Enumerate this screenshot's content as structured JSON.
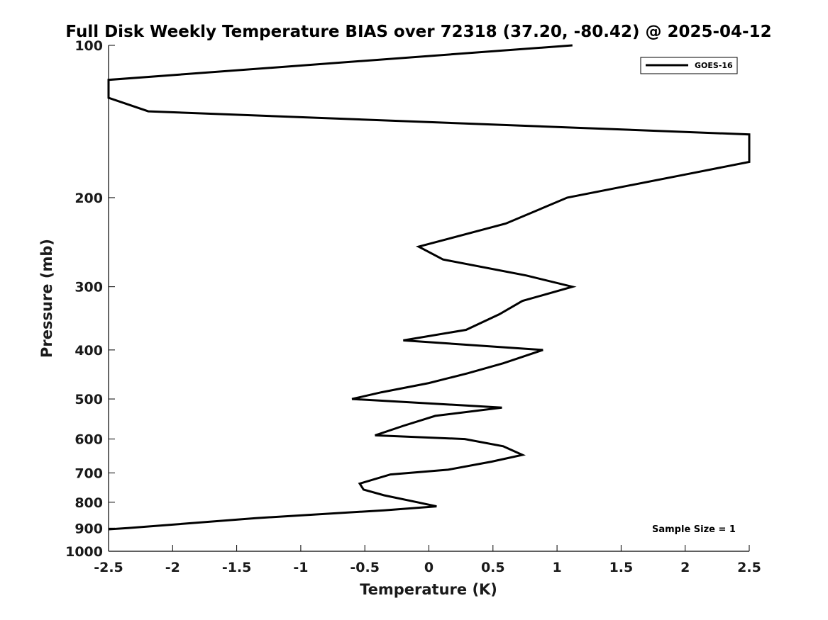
{
  "chart_data": {
    "type": "line",
    "title": "Full Disk Weekly Temperature BIAS over 72318 (37.20, -80.42) @ 2025-04-12",
    "xlabel": "Temperature (K)",
    "ylabel": "Pressure (mb)",
    "xlim": [
      -2.5,
      2.5
    ],
    "ylim": [
      1000,
      100
    ],
    "y_scale": "log",
    "x_ticks": [
      -2.5,
      -2,
      -1.5,
      -1,
      -0.5,
      0,
      0.5,
      1,
      1.5,
      2,
      2.5
    ],
    "x_tick_labels": [
      "-2.5",
      "-2",
      "-1.5",
      "-1",
      "-0.5",
      "0",
      "0.5",
      "1",
      "1.5",
      "2",
      "2.5"
    ],
    "y_ticks": [
      100,
      200,
      300,
      400,
      500,
      600,
      700,
      800,
      900,
      1000
    ],
    "y_tick_labels": [
      "100",
      "200",
      "300",
      "400",
      "500",
      "600",
      "700",
      "800",
      "900",
      "1000"
    ],
    "grid": false,
    "legend_position": "top-right",
    "annotation": "Sample Size = 1",
    "series": [
      {
        "name": "GOES-16",
        "color": "#000000",
        "points": [
          [
            1.12,
            100
          ],
          [
            -2.5,
            117
          ],
          [
            -2.5,
            127
          ],
          [
            -2.19,
            135
          ],
          [
            2.5,
            150
          ],
          [
            2.5,
            170
          ],
          [
            2.0,
            180
          ],
          [
            1.08,
            200
          ],
          [
            0.6,
            225
          ],
          [
            -0.08,
            250
          ],
          [
            0.11,
            265
          ],
          [
            0.76,
            285
          ],
          [
            1.12,
            300
          ],
          [
            0.73,
            320
          ],
          [
            0.55,
            340
          ],
          [
            0.29,
            365
          ],
          [
            -0.2,
            383
          ],
          [
            0.89,
            400
          ],
          [
            0.58,
            425
          ],
          [
            0.3,
            445
          ],
          [
            0.0,
            465
          ],
          [
            -0.37,
            485
          ],
          [
            -0.6,
            500
          ],
          [
            0.57,
            520
          ],
          [
            0.05,
            540
          ],
          [
            -0.2,
            565
          ],
          [
            -0.42,
            590
          ],
          [
            0.28,
            600
          ],
          [
            0.58,
            620
          ],
          [
            0.73,
            645
          ],
          [
            0.49,
            665
          ],
          [
            0.15,
            690
          ],
          [
            -0.3,
            705
          ],
          [
            -0.54,
            735
          ],
          [
            -0.51,
            755
          ],
          [
            -0.35,
            775
          ],
          [
            -0.09,
            800
          ],
          [
            0.06,
            815
          ],
          [
            -0.35,
            830
          ],
          [
            -1.35,
            860
          ],
          [
            -2.35,
            900
          ],
          [
            -2.5,
            905
          ]
        ]
      }
    ]
  }
}
